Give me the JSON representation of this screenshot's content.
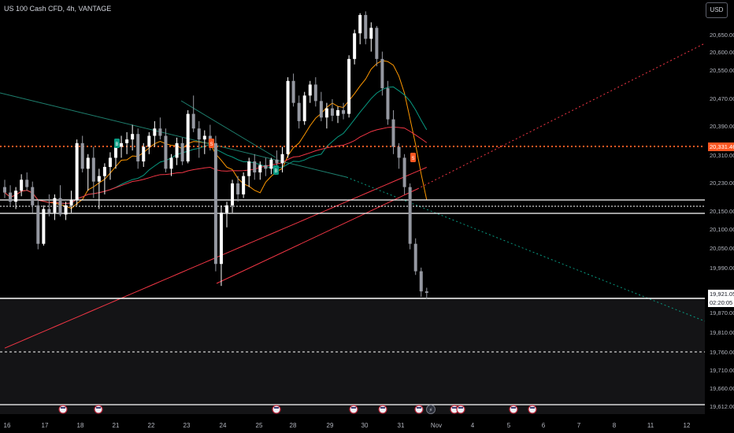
{
  "header": {
    "symbol_label": "US 100 Cash CFD, 4h, VANTAGE",
    "currency_button": "USD"
  },
  "colors": {
    "up": "#ffffff",
    "down": "#9598a1",
    "ma_red": "#f23645",
    "ma_orange": "#ff9800",
    "ma_teal": "#089981",
    "trend_teal": "#1e7f6e",
    "price_line": "#ff5722",
    "level": "#ffffff"
  },
  "price_axis": {
    "ticks": [
      "20,650.00",
      "20,600.00",
      "20,550.00",
      "20,470.00",
      "20,390.00",
      "20,310.00",
      "20,230.00",
      "20,150.00",
      "20,100.00",
      "20,050.00",
      "19,990.00",
      "19,870.00",
      "19,810.00",
      "19,760.00",
      "19,710.00",
      "19,660.00",
      "19,612.00"
    ],
    "current_price": "20,331.46",
    "last_price": "19,921.05",
    "countdown": "02:20:05"
  },
  "time_axis": [
    "16",
    "17",
    "18",
    "21",
    "22",
    "23",
    "24",
    "25",
    "28",
    "29",
    "30",
    "31",
    "Nov",
    "4",
    "5",
    "6",
    "7",
    "8",
    "11",
    "12"
  ],
  "chart_data": {
    "type": "candlestick",
    "symbol": "US 100 Cash CFD",
    "timeframe": "4h",
    "y_ticks": [
      20650,
      20600,
      20550,
      20470,
      20390,
      20310,
      20230,
      20150,
      20100,
      20050,
      19990,
      19870,
      19810,
      19760,
      19710,
      19660,
      19612
    ],
    "x_ticks": [
      "16",
      "17",
      "18",
      "21",
      "22",
      "23",
      "24",
      "25",
      "28",
      "29",
      "30",
      "31",
      "Nov",
      "4",
      "5",
      "6",
      "7",
      "8",
      "11",
      "12"
    ],
    "candles": [
      [
        20210,
        20230,
        20180,
        20195
      ],
      [
        20195,
        20215,
        20160,
        20170
      ],
      [
        20170,
        20210,
        20150,
        20200
      ],
      [
        20200,
        20245,
        20185,
        20230
      ],
      [
        20230,
        20250,
        20200,
        20210
      ],
      [
        20210,
        20225,
        20140,
        20160
      ],
      [
        20160,
        20175,
        20040,
        20055
      ],
      [
        20055,
        20160,
        20050,
        20150
      ],
      [
        20150,
        20190,
        20130,
        20140
      ],
      [
        20140,
        20190,
        20120,
        20180
      ],
      [
        20180,
        20215,
        20130,
        20135
      ],
      [
        20135,
        20170,
        20120,
        20160
      ],
      [
        20160,
        20200,
        20140,
        20175
      ],
      [
        20175,
        20340,
        20160,
        20330
      ],
      [
        20330,
        20350,
        20250,
        20260
      ],
      [
        20260,
        20300,
        20200,
        20290
      ],
      [
        20290,
        20320,
        20180,
        20225
      ],
      [
        20225,
        20260,
        20150,
        20240
      ],
      [
        20240,
        20275,
        20190,
        20265
      ],
      [
        20265,
        20305,
        20230,
        20290
      ],
      [
        20290,
        20330,
        20260,
        20320
      ],
      [
        20320,
        20350,
        20290,
        20330
      ],
      [
        20330,
        20360,
        20300,
        20340
      ],
      [
        20340,
        20380,
        20310,
        20355
      ],
      [
        20355,
        20370,
        20260,
        20280
      ],
      [
        20280,
        20330,
        20265,
        20320
      ],
      [
        20320,
        20360,
        20300,
        20350
      ],
      [
        20350,
        20390,
        20320,
        20370
      ],
      [
        20370,
        20400,
        20340,
        20350
      ],
      [
        20350,
        20370,
        20250,
        20260
      ],
      [
        20260,
        20300,
        20240,
        20290
      ],
      [
        20290,
        20345,
        20270,
        20330
      ],
      [
        20330,
        20345,
        20270,
        20280
      ],
      [
        20280,
        20420,
        20275,
        20410
      ],
      [
        20410,
        20460,
        20360,
        20370
      ],
      [
        20370,
        20390,
        20290,
        20340
      ],
      [
        20340,
        20365,
        20300,
        20350
      ],
      [
        20350,
        20380,
        20310,
        20330
      ],
      [
        20330,
        20350,
        19980,
        20000
      ],
      [
        20000,
        20160,
        19940,
        20140
      ],
      [
        20140,
        20170,
        20100,
        20160
      ],
      [
        20160,
        20230,
        20140,
        20220
      ],
      [
        20220,
        20240,
        20170,
        20190
      ],
      [
        20190,
        20250,
        20180,
        20240
      ],
      [
        20240,
        20290,
        20210,
        20280
      ],
      [
        20280,
        20300,
        20230,
        20250
      ],
      [
        20250,
        20280,
        20230,
        20270
      ],
      [
        20270,
        20290,
        20240,
        20260
      ],
      [
        20260,
        20290,
        20245,
        20285
      ],
      [
        20285,
        20310,
        20260,
        20275
      ],
      [
        20275,
        20320,
        20250,
        20300
      ],
      [
        20300,
        20510,
        20290,
        20500
      ],
      [
        20500,
        20520,
        20430,
        20440
      ],
      [
        20440,
        20460,
        20370,
        20390
      ],
      [
        20390,
        20470,
        20380,
        20460
      ],
      [
        20460,
        20500,
        20440,
        20490
      ],
      [
        20490,
        20510,
        20430,
        20445
      ],
      [
        20445,
        20470,
        20390,
        20400
      ],
      [
        20400,
        20440,
        20370,
        20425
      ],
      [
        20425,
        20450,
        20390,
        20405
      ],
      [
        20405,
        20430,
        20385,
        20420
      ],
      [
        20420,
        20440,
        20395,
        20410
      ],
      [
        20410,
        20570,
        20400,
        20560
      ],
      [
        20560,
        20640,
        20545,
        20630
      ],
      [
        20630,
        20685,
        20600,
        20680
      ],
      [
        20680,
        20690,
        20600,
        20615
      ],
      [
        20615,
        20660,
        20580,
        20645
      ],
      [
        20645,
        20650,
        20540,
        20560
      ],
      [
        20560,
        20580,
        20460,
        20480
      ],
      [
        20480,
        20500,
        20380,
        20395
      ],
      [
        20395,
        20420,
        20300,
        20320
      ],
      [
        20320,
        20330,
        20260,
        20290
      ],
      [
        20290,
        20300,
        20190,
        20210
      ],
      [
        20210,
        20220,
        20040,
        20055
      ],
      [
        20055,
        20070,
        19970,
        19980
      ],
      [
        19980,
        19990,
        19910,
        19925
      ],
      [
        19925,
        19935,
        19905,
        19921
      ]
    ],
    "last_price": 19921.05,
    "current_price_line": 20331.46,
    "horizontal_levels": [
      20175,
      20160,
      20140,
      19910,
      19765,
      19612
    ]
  }
}
